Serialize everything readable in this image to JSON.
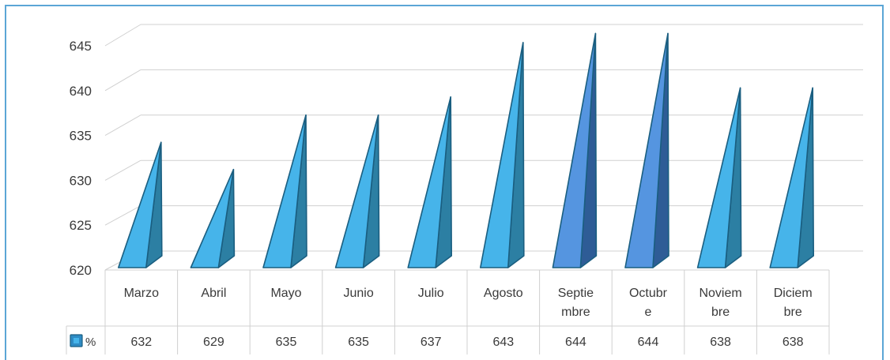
{
  "chart_data": {
    "type": "bar",
    "bar_shape": "pyramid-3d",
    "categories": [
      "Marzo",
      "Abril",
      "Mayo",
      "Junio",
      "Julio",
      "Agosto",
      "Septiembre",
      "Octubre",
      "Noviembre",
      "Diciembre"
    ],
    "category_display_lines": [
      [
        "Marzo"
      ],
      [
        "Abril"
      ],
      [
        "Mayo"
      ],
      [
        "Junio"
      ],
      [
        "Julio"
      ],
      [
        "Agosto"
      ],
      [
        "Septie",
        "mbre"
      ],
      [
        "Octubr",
        "e"
      ],
      [
        "Noviem",
        "bre"
      ],
      [
        "Diciem",
        "bre"
      ]
    ],
    "series": [
      {
        "name": "%",
        "values": [
          632,
          629,
          635,
          635,
          637,
          643,
          644,
          644,
          638,
          638
        ]
      }
    ],
    "ylim": [
      620,
      645
    ],
    "yticks": [
      620,
      625,
      630,
      635,
      640,
      645
    ],
    "grid": true,
    "data_table": true,
    "highlighted_categories": [
      "Septiembre",
      "Octubre"
    ],
    "colors": {
      "bar_front": "#46B4EA",
      "bar_side": "#2C7FA3",
      "bar_front_highlight": "#5595E0",
      "bar_side_highlight": "#2E5C96",
      "bar_edge": "#1A5E80",
      "legend_key": "#2E8BC4",
      "grid": "#d0d0d0",
      "border": "#5BA6D6"
    }
  }
}
